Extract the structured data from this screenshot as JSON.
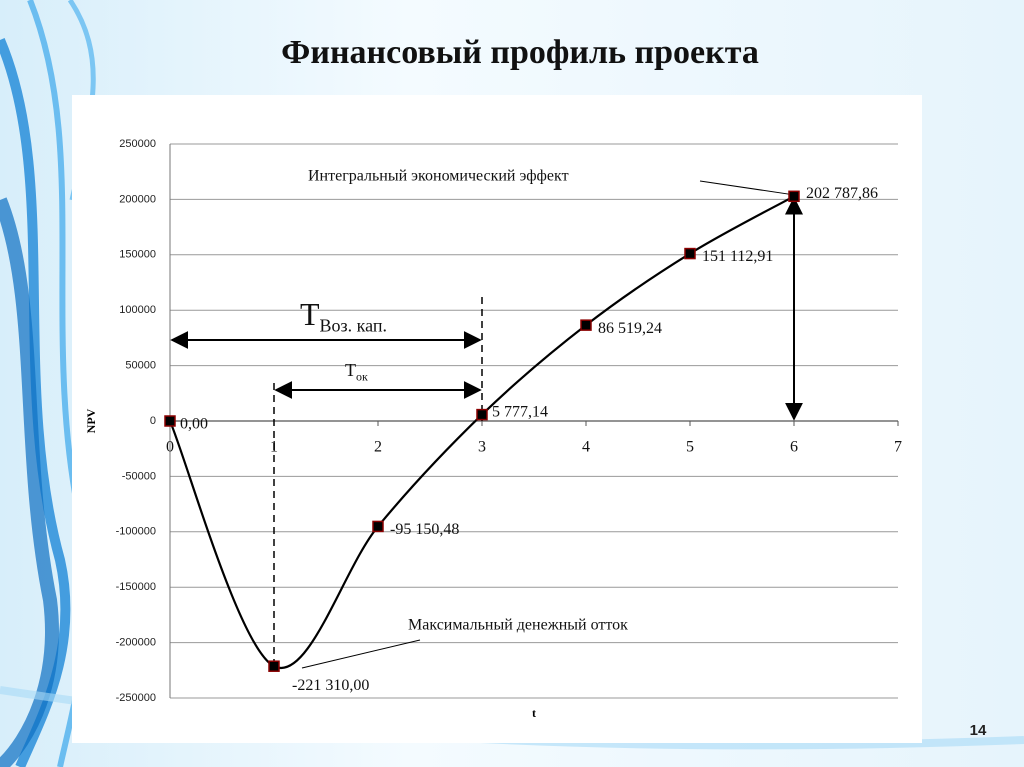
{
  "slide": {
    "title": "Финансовый профиль проекта",
    "page_number": "14"
  },
  "chart_data": {
    "type": "line",
    "x": [
      0,
      1,
      2,
      3,
      4,
      5,
      6
    ],
    "values": [
      0,
      -221310,
      -95150.48,
      5777.14,
      86519.24,
      151112.91,
      202787.86
    ],
    "value_labels": [
      "0,00",
      "-221 310,00",
      "-95 150,48",
      "5 777,14",
      "86 519,24",
      "151 112,91",
      "202 787,86"
    ],
    "color": "#000000",
    "marker_color": "#000000",
    "marker_edge_color": "#8b0000",
    "xlim": [
      0,
      7
    ],
    "xticks": [
      0,
      1,
      2,
      3,
      4,
      5,
      6,
      7
    ],
    "ylim": [
      -250000,
      250000
    ],
    "yticks": [
      -250000,
      -200000,
      -150000,
      -100000,
      -50000,
      0,
      50000,
      100000,
      150000,
      200000,
      250000
    ],
    "grid": true,
    "y_label": "NPV",
    "x_label": "t",
    "annotations": {
      "integral_effect": "Интегральный экономический эффект",
      "max_outflow": "Максимальный денежный отток",
      "payback": {
        "text": "Т",
        "subscript": "Воз. кап."
      },
      "payback_ok": {
        "text": "Т",
        "subscript": "ок"
      }
    }
  }
}
